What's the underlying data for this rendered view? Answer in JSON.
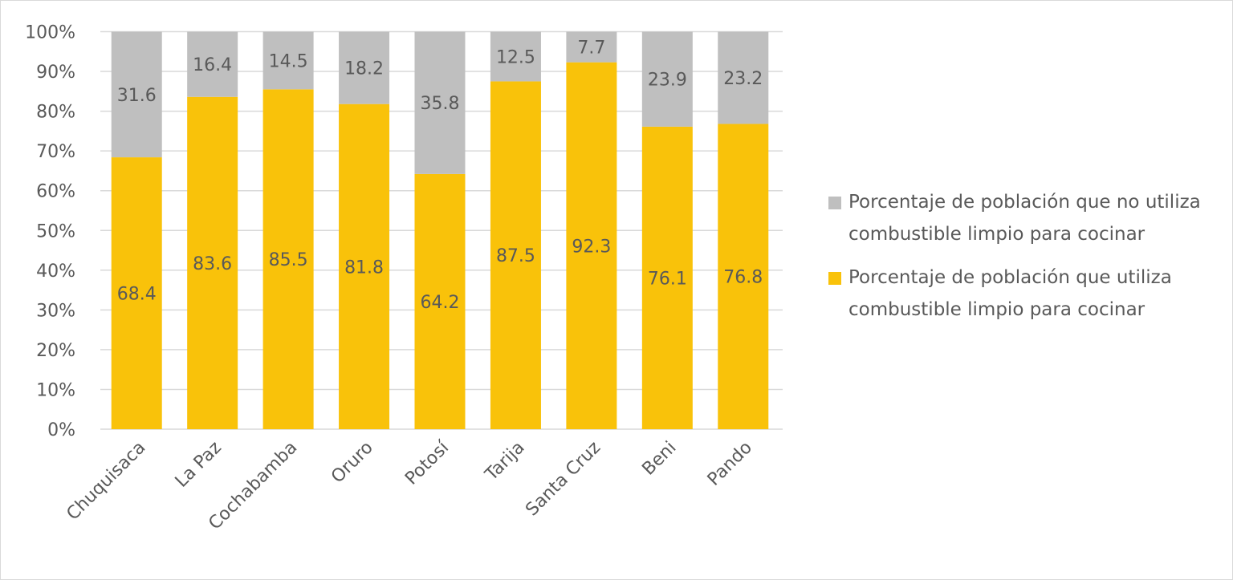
{
  "chart_data": {
    "type": "stacked-bar-100",
    "categories": [
      "Chuquisaca",
      "La Paz",
      "Cochabamba",
      "Oruro",
      "Potosí",
      "Tarija",
      "Santa Cruz",
      "Beni",
      "Pando"
    ],
    "series": [
      {
        "name": "Porcentaje de población que utiliza combustible limpio para cocinar",
        "color": "#F9C20A",
        "values": [
          68.4,
          83.6,
          85.5,
          81.8,
          64.2,
          87.5,
          92.3,
          76.1,
          76.8
        ]
      },
      {
        "name": "Porcentaje de población que no utiliza combustible limpio para cocinar",
        "color": "#BFBFBF",
        "values": [
          31.6,
          16.4,
          14.5,
          18.2,
          35.8,
          12.5,
          7.7,
          23.9,
          23.2
        ]
      }
    ],
    "ylim": [
      0,
      100
    ],
    "yticks": [
      "0%",
      "10%",
      "20%",
      "30%",
      "40%",
      "50%",
      "60%",
      "70%",
      "80%",
      "90%",
      "100%"
    ],
    "grid": true,
    "legend_position": "right",
    "legend_order": [
      1,
      0
    ],
    "label_color": "#595959"
  }
}
